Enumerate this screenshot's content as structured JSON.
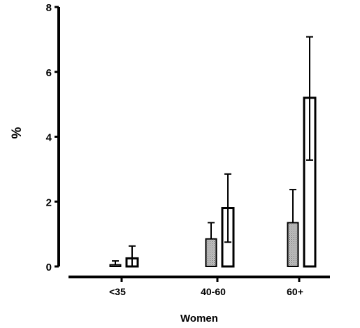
{
  "chart_data": {
    "type": "bar",
    "categories": [
      "<35",
      "40-60",
      "60+"
    ],
    "series": [
      {
        "fill": "#a9a9a9",
        "pattern": "dotted-gray",
        "values": [
          0.05,
          0.85,
          1.35
        ],
        "error": [
          0.12,
          0.5,
          1.02
        ]
      },
      {
        "fill": "#ffffff",
        "pattern": "white",
        "values": [
          0.25,
          1.8,
          5.2
        ],
        "error_upper": [
          0.38,
          1.05,
          1.88
        ],
        "error_lower": [
          0.25,
          1.05,
          1.92
        ]
      }
    ],
    "title": "",
    "xlabel": "Women",
    "ylabel": "%",
    "ylim": [
      0,
      8
    ],
    "yticks": [
      0,
      2,
      4,
      6,
      8
    ],
    "grid": false,
    "legend": "none"
  }
}
